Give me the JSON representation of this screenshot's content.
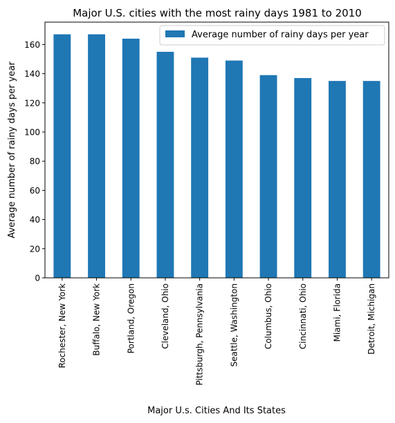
{
  "chart_data": {
    "type": "bar",
    "title": "Major U.S. cities with the most rainy days 1981 to 2010",
    "xlabel": "Major U.s. Cities And Its States",
    "ylabel": "Average number of rainy days per year",
    "categories": [
      "Rochester, New York",
      "Buffalo, New York",
      "Portland, Oregon",
      "Cleveland, Ohio",
      "Pittsburgh, Pennsylvania",
      "Seattle, Washington",
      "Columbus, Ohio",
      "Cincinnati, Ohio",
      "Miami, Florida",
      "Detroit, Michigan"
    ],
    "series": [
      {
        "name": "Average number of rainy days per year",
        "values": [
          167,
          167,
          164,
          155,
          151,
          149,
          139,
          137,
          135,
          135
        ],
        "color": "#1f77b4"
      }
    ],
    "yticks": [
      0,
      20,
      40,
      60,
      80,
      100,
      120,
      140,
      160
    ],
    "ylim": [
      0,
      175.35
    ],
    "grid": false,
    "legend_position": "top-right"
  }
}
